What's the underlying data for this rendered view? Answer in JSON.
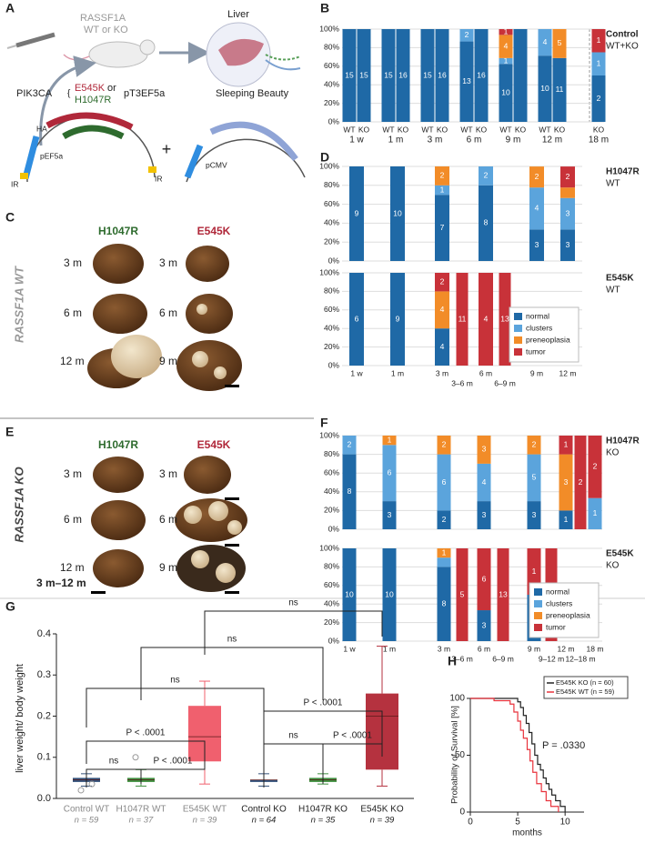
{
  "panel_labels": [
    "A",
    "B",
    "C",
    "D",
    "E",
    "F",
    "G",
    "H"
  ],
  "panel_a": {
    "gene": "RASSF1A",
    "genotype": "WT or KO",
    "organ": "Liver",
    "oncogene": "PIK3CA",
    "mutant_1": "E545K",
    "or": "or",
    "mutant_2": "H1047R",
    "vector": "pT3EF5a",
    "transposase": "Sleeping Beauty",
    "tag": "HA",
    "promoter": "pEF5a",
    "ir_left": "IR",
    "ir_right": "IR",
    "plus": "+",
    "promoter_2": "pCMV"
  },
  "panel_c": {
    "side_label": "RASSF1A WT",
    "columns": [
      "H1047R",
      "E545K"
    ],
    "times": [
      [
        "3 m",
        "6 m",
        "12 m"
      ],
      [
        "3 m",
        "6 m",
        "9 m"
      ]
    ]
  },
  "panel_e": {
    "side_label": "RASSF1A KO",
    "columns": [
      "H1047R",
      "E545K"
    ],
    "times": [
      [
        "3 m",
        "6 m",
        "12 m"
      ],
      [
        "3 m",
        "6 m",
        "9 m"
      ]
    ]
  },
  "chart_data": [
    {
      "type": "stacked_bar",
      "title": "Control",
      "subtitle": "WT+KO",
      "groups": [
        {
          "label": "1 w",
          "bars": [
            "WT",
            "KO"
          ]
        },
        {
          "label": "1 m",
          "bars": [
            "WT",
            "KO"
          ]
        },
        {
          "label": "3 m",
          "bars": [
            "WT",
            "KO"
          ]
        },
        {
          "label": "6 m",
          "bars": [
            "WT",
            "KO"
          ]
        },
        {
          "label": "9 m",
          "bars": [
            "WT",
            "KO"
          ]
        },
        {
          "label": "12 m",
          "bars": [
            "WT",
            "KO"
          ]
        },
        {
          "label": "18 m",
          "bars": [
            "KO"
          ]
        }
      ],
      "series": [
        {
          "color": "#1f69a6",
          "values": [
            100,
            100,
            100,
            100,
            100,
            100,
            86.7,
            100,
            62.5,
            100,
            71.4,
            68.8,
            50
          ],
          "counts": [
            15,
            15,
            15,
            16,
            15,
            16,
            13,
            16,
            10,
            null,
            10,
            11,
            2
          ]
        },
        {
          "color": "#5ba4dc",
          "values": [
            null,
            null,
            null,
            null,
            null,
            null,
            13.3,
            null,
            6.25,
            null,
            28.6,
            null,
            25
          ],
          "counts": [
            null,
            null,
            null,
            null,
            null,
            null,
            2,
            null,
            1,
            null,
            4,
            null,
            1
          ]
        },
        {
          "color": "#f28c28",
          "values": [
            null,
            null,
            null,
            null,
            null,
            null,
            null,
            null,
            25,
            null,
            null,
            31.2,
            null
          ],
          "counts": [
            null,
            null,
            null,
            null,
            null,
            null,
            null,
            null,
            4,
            null,
            null,
            5,
            null
          ]
        },
        {
          "color": "#c83239",
          "values": [
            null,
            null,
            null,
            null,
            null,
            null,
            null,
            null,
            6.25,
            null,
            null,
            null,
            25
          ],
          "counts": [
            null,
            null,
            null,
            null,
            null,
            null,
            null,
            null,
            1,
            null,
            null,
            null,
            1
          ]
        }
      ],
      "ylim": [
        0,
        100
      ],
      "yticks": [
        {
          "value": 0,
          "label": "0%"
        },
        {
          "value": 20,
          "label": "20%"
        },
        {
          "value": 40,
          "label": "40%"
        },
        {
          "value": 60,
          "label": "60%"
        },
        {
          "value": 80,
          "label": "80%"
        },
        {
          "value": 100,
          "label": "100%"
        }
      ],
      "grid": true
    },
    {
      "type": "stacked_bar",
      "title": "H1047R",
      "subtitle": "WT",
      "categories": [
        null,
        null,
        null,
        null,
        null,
        null,
        null,
        null
      ],
      "series": [
        {
          "color": "#1f69a6",
          "values": [
            100,
            100,
            70,
            null,
            80,
            null,
            33.3,
            33.3
          ],
          "counts": [
            9,
            10,
            7,
            null,
            8,
            null,
            3,
            3
          ]
        },
        {
          "color": "#5ba4dc",
          "values": [
            null,
            null,
            10,
            null,
            20,
            null,
            44.4,
            33.3
          ],
          "counts": [
            null,
            null,
            1,
            null,
            2,
            null,
            4,
            3
          ]
        },
        {
          "color": "#f28c28",
          "values": [
            null,
            null,
            20,
            null,
            null,
            null,
            22.2,
            11.1
          ],
          "counts": [
            null,
            null,
            2,
            null,
            null,
            null,
            2,
            null
          ]
        },
        {
          "color": "#c83239",
          "values": [
            null,
            null,
            null,
            null,
            null,
            null,
            null,
            22.2
          ],
          "counts": [
            null,
            null,
            null,
            null,
            null,
            null,
            null,
            2
          ]
        }
      ],
      "ylim": [
        0,
        100
      ],
      "yticks": [
        {
          "value": 0,
          "label": "0%"
        },
        {
          "value": 20,
          "label": "20%"
        },
        {
          "value": 40,
          "label": "40%"
        },
        {
          "value": 60,
          "label": "60%"
        },
        {
          "value": 80,
          "label": "80%"
        },
        {
          "value": 100,
          "label": "100%"
        }
      ],
      "grid": true
    },
    {
      "type": "stacked_bar",
      "title": "E545K",
      "subtitle": "WT",
      "categories": [
        "1 w",
        "1 m",
        "3 m",
        "3–6 m",
        "6 m",
        "6–9 m",
        "9 m",
        "12 m"
      ],
      "series": [
        {
          "name": "normal",
          "color": "#1f69a6",
          "values": [
            100,
            100,
            40,
            null,
            null,
            null,
            null,
            null
          ],
          "counts": [
            6,
            9,
            4,
            null,
            null,
            null,
            null,
            null
          ]
        },
        {
          "name": "clusters",
          "color": "#5ba4dc",
          "values": [
            null,
            null,
            null,
            null,
            null,
            null,
            null,
            null
          ],
          "counts": [
            null,
            null,
            null,
            null,
            null,
            null,
            null,
            null
          ]
        },
        {
          "name": "preneoplasia",
          "color": "#f28c28",
          "values": [
            null,
            null,
            40,
            null,
            null,
            null,
            null,
            null
          ],
          "counts": [
            null,
            null,
            4,
            null,
            null,
            null,
            null,
            null
          ]
        },
        {
          "name": "tumor",
          "color": "#c83239",
          "values": [
            null,
            null,
            20,
            100,
            100,
            100,
            null,
            null
          ],
          "counts": [
            null,
            null,
            2,
            11,
            4,
            13,
            null,
            null
          ]
        }
      ],
      "ylim": [
        0,
        100
      ],
      "yticks": [
        {
          "value": 0,
          "label": "0%"
        },
        {
          "value": 20,
          "label": "20%"
        },
        {
          "value": 40,
          "label": "40%"
        },
        {
          "value": 60,
          "label": "60%"
        },
        {
          "value": 80,
          "label": "80%"
        },
        {
          "value": 100,
          "label": "100%"
        }
      ],
      "grid": true,
      "legend": "lower right"
    },
    {
      "type": "stacked_bar",
      "title": "H1047R",
      "subtitle": "KO",
      "categories": [
        null,
        null,
        null,
        null,
        null,
        null,
        null,
        null,
        null,
        null,
        null
      ],
      "series": [
        {
          "color": "#1f69a6",
          "values": [
            80,
            30,
            20,
            null,
            30,
            null,
            30,
            null,
            20,
            null,
            null
          ],
          "counts": [
            8,
            3,
            2,
            null,
            3,
            null,
            3,
            null,
            1,
            null,
            null
          ]
        },
        {
          "color": "#5ba4dc",
          "values": [
            20,
            60,
            60,
            null,
            40,
            null,
            50,
            null,
            null,
            null,
            33.3
          ],
          "counts": [
            2,
            6,
            6,
            null,
            4,
            null,
            5,
            null,
            null,
            null,
            1
          ]
        },
        {
          "color": "#f28c28",
          "values": [
            null,
            10,
            20,
            null,
            30,
            null,
            20,
            null,
            60,
            null,
            null
          ],
          "counts": [
            null,
            1,
            2,
            null,
            3,
            null,
            2,
            null,
            3,
            null,
            null
          ]
        },
        {
          "color": "#c83239",
          "values": [
            null,
            null,
            null,
            null,
            null,
            null,
            null,
            null,
            20,
            100,
            66.7
          ],
          "counts": [
            null,
            null,
            null,
            null,
            null,
            null,
            null,
            null,
            1,
            2,
            2
          ]
        }
      ],
      "ylim": [
        0,
        100
      ],
      "yticks": [
        {
          "value": 0,
          "label": "0%"
        },
        {
          "value": 20,
          "label": "20%"
        },
        {
          "value": 40,
          "label": "40%"
        },
        {
          "value": 60,
          "label": "60%"
        },
        {
          "value": 80,
          "label": "80%"
        },
        {
          "value": 100,
          "label": "100%"
        }
      ],
      "grid": true
    },
    {
      "type": "stacked_bar",
      "title": "E545K",
      "subtitle": "KO",
      "categories": [
        "1 w",
        "1 m",
        "3 m",
        "3–6 m",
        "6 m",
        "6–9 m",
        "9 m",
        "9–12 m",
        "12 m",
        "12–18 m",
        "18 m"
      ],
      "series": [
        {
          "name": "normal",
          "color": "#1f69a6",
          "values": [
            100,
            100,
            80,
            null,
            33.3,
            null,
            50,
            null,
            null,
            null,
            null
          ],
          "counts": [
            10,
            10,
            8,
            null,
            3,
            null,
            1,
            null,
            null,
            null,
            null
          ]
        },
        {
          "name": "clusters",
          "color": "#5ba4dc",
          "values": [
            null,
            null,
            10,
            null,
            null,
            null,
            null,
            null,
            null,
            null,
            null
          ],
          "counts": [
            null,
            null,
            null,
            null,
            null,
            null,
            null,
            null,
            null,
            null,
            null
          ]
        },
        {
          "name": "preneoplasia",
          "color": "#f28c28",
          "values": [
            null,
            null,
            10,
            null,
            null,
            null,
            null,
            null,
            null,
            null,
            null
          ],
          "counts": [
            null,
            null,
            1,
            null,
            null,
            null,
            null,
            null,
            null,
            null,
            null
          ]
        },
        {
          "name": "tumor",
          "color": "#c83239",
          "values": [
            null,
            null,
            null,
            100,
            66.7,
            100,
            50,
            100,
            null,
            null,
            null
          ],
          "counts": [
            null,
            null,
            null,
            5,
            6,
            13,
            1,
            null,
            null,
            null,
            null
          ]
        }
      ],
      "ylim": [
        0,
        100
      ],
      "yticks": [
        {
          "value": 0,
          "label": "0%"
        },
        {
          "value": 20,
          "label": "20%"
        },
        {
          "value": 40,
          "label": "40%"
        },
        {
          "value": 60,
          "label": "60%"
        },
        {
          "value": 80,
          "label": "80%"
        },
        {
          "value": 100,
          "label": "100%"
        }
      ],
      "grid": true,
      "legend": "lower right"
    },
    {
      "type": "box",
      "title": "3 m–12 m",
      "ylabel": "liver weight/ body weight",
      "categories": [
        "Control WT",
        "H1047R WT",
        "E545K WT",
        "Control KO",
        "H1047R KO",
        "E545K KO"
      ],
      "n_labels": [
        "n = 59",
        "n = 37",
        "n = 39",
        "n = 64",
        "n = 35",
        "n = 39"
      ],
      "label_colors": [
        "#888",
        "#888",
        "#888",
        "#222",
        "#222",
        "#222"
      ],
      "colors": [
        "#34527a",
        "#3f8f3f",
        "#f0606e",
        "#34527a",
        "#3f8f3f",
        "#b5323f"
      ],
      "min": [
        0.03,
        0.03,
        0.035,
        0.03,
        0.035,
        0.03
      ],
      "q1": [
        0.04,
        0.04,
        0.09,
        0.04,
        0.04,
        0.07
      ],
      "median": [
        0.045,
        0.045,
        0.15,
        0.045,
        0.045,
        0.2
      ],
      "q3": [
        0.05,
        0.05,
        0.225,
        0.045,
        0.05,
        0.255
      ],
      "max": [
        0.06,
        0.07,
        0.285,
        0.06,
        0.06,
        0.37
      ],
      "outliers": [
        [
          0.02,
          0.035
        ],
        [
          0.1
        ],
        [],
        [],
        [],
        []
      ],
      "ylim": [
        0,
        0.4
      ],
      "yticks": [
        {
          "value": 0,
          "label": "0.0"
        },
        {
          "value": 0.1,
          "label": "0.1"
        },
        {
          "value": 0.2,
          "label": "0.2"
        },
        {
          "value": 0.3,
          "label": "0.3"
        },
        {
          "value": 0.4,
          "label": "0.4"
        }
      ],
      "comparisons": [
        {
          "pair": [
            0,
            2
          ],
          "label": "P < .0001"
        },
        {
          "pair": [
            0,
            1
          ],
          "label": "ns"
        },
        {
          "pair": [
            1,
            2
          ],
          "label": "P < .0001"
        },
        {
          "pair": [
            3,
            5
          ],
          "label": "P < .0001"
        },
        {
          "pair": [
            3,
            4
          ],
          "label": "ns"
        },
        {
          "pair": [
            4,
            5
          ],
          "label": "P < .0001"
        },
        {
          "pair": [
            0,
            3
          ],
          "label": "ns"
        },
        {
          "pair": [
            1,
            4
          ],
          "label": "ns"
        },
        {
          "pair": [
            2,
            5
          ],
          "label": "ns"
        }
      ]
    },
    {
      "type": "survival",
      "xlabel": "months",
      "ylabel": "Probability of Survival [%]",
      "series": [
        {
          "name": "E545K KO (n = 60)",
          "color": "#222222",
          "x": [
            0,
            4.5,
            5,
            5.3,
            5.6,
            5.9,
            6.2,
            6.5,
            6.8,
            7.1,
            7.4,
            7.7,
            8,
            8.3,
            8.6,
            9,
            9.5,
            10
          ],
          "values": [
            100,
            100,
            97,
            92,
            85,
            78,
            70,
            60,
            50,
            42,
            37,
            30,
            25,
            20,
            15,
            10,
            5,
            0
          ]
        },
        {
          "name": "E545K WT (n = 59)",
          "color": "#e8333c",
          "x": [
            0,
            2.5,
            4.2,
            4.6,
            5,
            5.3,
            5.6,
            6,
            6.3,
            6.6,
            7,
            7.5,
            8,
            8.5,
            9.3
          ],
          "values": [
            100,
            98,
            95,
            88,
            80,
            72,
            65,
            55,
            45,
            35,
            25,
            18,
            10,
            5,
            0
          ]
        }
      ],
      "annotation": "P = .0330",
      "xlim": [
        0,
        12
      ],
      "xticks": [
        0,
        5,
        10
      ],
      "ylim": [
        0,
        100
      ],
      "yticks": [
        0,
        50,
        100
      ],
      "legend": "upper right"
    }
  ]
}
